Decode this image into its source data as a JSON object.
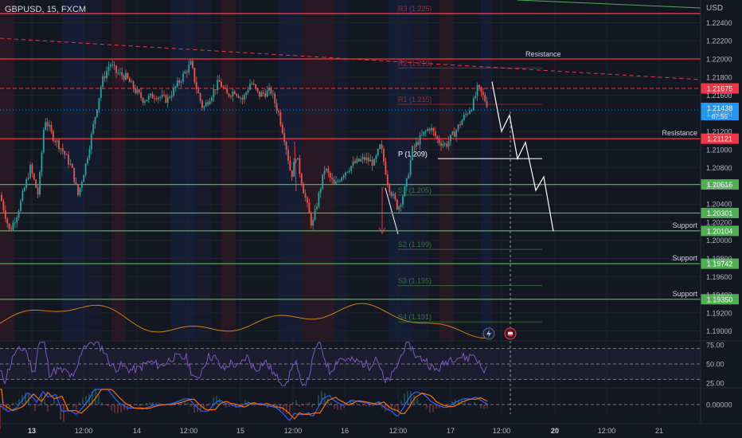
{
  "header": {
    "symbol_label": "GBPUSD, 15, FXCM"
  },
  "currency_label": "USD",
  "colors": {
    "background": "#131722",
    "up": "#26a69a",
    "down": "#ef5350",
    "resistance": "#f23645",
    "support": "#4caf50",
    "pivot": "#d1d4dc",
    "current": "#2196f3",
    "rsi": "#7e57c2",
    "macd": "#2962ff",
    "signal": "#ff6d00",
    "osc": "#ff9800",
    "projection": "#ffffff",
    "text": "#b2b5be"
  },
  "chart_data": [
    {
      "type": "candlestick",
      "name": "price",
      "ylim": [
        1.189,
        1.2265
      ],
      "y_ticks": [
        "1.22400",
        "1.22200",
        "1.22000",
        "1.21800",
        "1.21600",
        "1.21400",
        "1.21200",
        "1.21000",
        "1.20800",
        "1.20600",
        "1.20400",
        "1.20200",
        "1.20000",
        "1.19800",
        "1.19600",
        "1.19400",
        "1.19200",
        "1.19000"
      ],
      "x_ticks": [
        {
          "label": "13",
          "bold": true
        },
        {
          "label": "12:00",
          "bold": false
        },
        {
          "label": "14",
          "bold": false
        },
        {
          "label": "12:00",
          "bold": false
        },
        {
          "label": "15",
          "bold": false
        },
        {
          "label": "12:00",
          "bold": false
        },
        {
          "label": "16",
          "bold": false
        },
        {
          "label": "12:00",
          "bold": false
        },
        {
          "label": "17",
          "bold": false
        },
        {
          "label": "12:00",
          "bold": false
        },
        {
          "label": "20",
          "bold": true
        },
        {
          "label": "12:00",
          "bold": false
        },
        {
          "label": "21",
          "bold": false
        }
      ],
      "path": [
        [
          0,
          1.205
        ],
        [
          12,
          1.201
        ],
        [
          22,
          1.203
        ],
        [
          38,
          1.208
        ],
        [
          48,
          1.205
        ],
        [
          56,
          1.2135
        ],
        [
          66,
          1.2115
        ],
        [
          78,
          1.21
        ],
        [
          90,
          1.208
        ],
        [
          98,
          1.205
        ],
        [
          108,
          1.2085
        ],
        [
          118,
          1.213
        ],
        [
          128,
          1.2175
        ],
        [
          138,
          1.2195
        ],
        [
          146,
          1.2185
        ],
        [
          158,
          1.218
        ],
        [
          170,
          1.2165
        ],
        [
          180,
          1.2155
        ],
        [
          195,
          1.216
        ],
        [
          210,
          1.2155
        ],
        [
          225,
          1.2175
        ],
        [
          240,
          1.2195
        ],
        [
          246,
          1.217
        ],
        [
          255,
          1.2145
        ],
        [
          265,
          1.216
        ],
        [
          275,
          1.2175
        ],
        [
          285,
          1.216
        ],
        [
          295,
          1.2165
        ],
        [
          305,
          1.2155
        ],
        [
          315,
          1.2175
        ],
        [
          325,
          1.216
        ],
        [
          340,
          1.2165
        ],
        [
          350,
          1.214
        ],
        [
          358,
          1.211
        ],
        [
          366,
          1.207
        ],
        [
          372,
          1.2095
        ],
        [
          380,
          1.206
        ],
        [
          392,
          1.2015
        ],
        [
          398,
          1.204
        ],
        [
          408,
          1.208
        ],
        [
          420,
          1.206
        ],
        [
          432,
          1.2075
        ],
        [
          445,
          1.2085
        ],
        [
          458,
          1.209
        ],
        [
          470,
          1.2085
        ],
        [
          478,
          1.2105
        ],
        [
          488,
          1.206
        ],
        [
          500,
          1.2035
        ],
        [
          510,
          1.206
        ],
        [
          518,
          1.21
        ],
        [
          530,
          1.2115
        ],
        [
          540,
          1.2125
        ],
        [
          550,
          1.211
        ],
        [
          560,
          1.2105
        ],
        [
          572,
          1.212
        ],
        [
          582,
          1.2135
        ],
        [
          594,
          1.215
        ],
        [
          600,
          1.2168
        ],
        [
          606,
          1.216
        ],
        [
          612,
          1.215
        ]
      ],
      "levels": [
        {
          "kind": "resistance",
          "value": 1.225,
          "label": "",
          "tag": ""
        },
        {
          "kind": "resistance",
          "value": 1.22,
          "label": "",
          "tag": ""
        },
        {
          "kind": "resistance",
          "value": 1.21675,
          "label": "",
          "tag": "1.21675",
          "dashed": true
        },
        {
          "kind": "resistance",
          "value": 1.21121,
          "label": "Resistance",
          "tag": "1.21121"
        },
        {
          "kind": "support",
          "value": 1.20616,
          "label": "",
          "tag": "1.20616"
        },
        {
          "kind": "support",
          "value": 1.20301,
          "label": "",
          "tag": "1.20301"
        },
        {
          "kind": "support",
          "value": 1.20104,
          "label": "Support",
          "tag": "1.20104"
        },
        {
          "kind": "support",
          "value": 1.19742,
          "label": "Support",
          "tag": "1.19742"
        },
        {
          "kind": "support",
          "value": 1.1935,
          "label": "Support",
          "tag": "1.19350"
        }
      ],
      "current_price": {
        "value": 1.21438,
        "tag": "1.21438",
        "countdown": "07:55"
      },
      "pivots": [
        {
          "label": "R3 (1.225)",
          "value": 1.225,
          "color": "resistance"
        },
        {
          "label": "R2 (1.219)",
          "value": 1.219,
          "color": "resistance"
        },
        {
          "label": "R1 (1.215)",
          "value": 1.215,
          "color": "resistance"
        },
        {
          "label": "P (1.209)",
          "value": 1.209,
          "color": "pivot"
        },
        {
          "label": "S1 (1.205)",
          "value": 1.205,
          "color": "support"
        },
        {
          "label": "S2 (1.199)",
          "value": 1.199,
          "color": "support"
        },
        {
          "label": "S3 (1.195)",
          "value": 1.195,
          "color": "support"
        },
        {
          "label": "S4 (1.191)",
          "value": 1.191,
          "color": "support"
        }
      ],
      "resistance_text": "Resistance",
      "projection": [
        [
          618,
          1.2175
        ],
        [
          630,
          1.212
        ],
        [
          640,
          1.2138
        ],
        [
          650,
          1.209
        ],
        [
          660,
          1.2108
        ],
        [
          673,
          1.2055
        ],
        [
          683,
          1.207
        ],
        [
          695,
          1.201
        ]
      ]
    },
    {
      "type": "line",
      "name": "RSI",
      "ylim": [
        20,
        80
      ],
      "y_ticks": [
        "75.00",
        "50.00",
        "25.00"
      ],
      "levels": [
        70,
        50,
        30
      ]
    },
    {
      "type": "line",
      "name": "MACD",
      "y_ticks": [
        "0.00000"
      ]
    }
  ]
}
